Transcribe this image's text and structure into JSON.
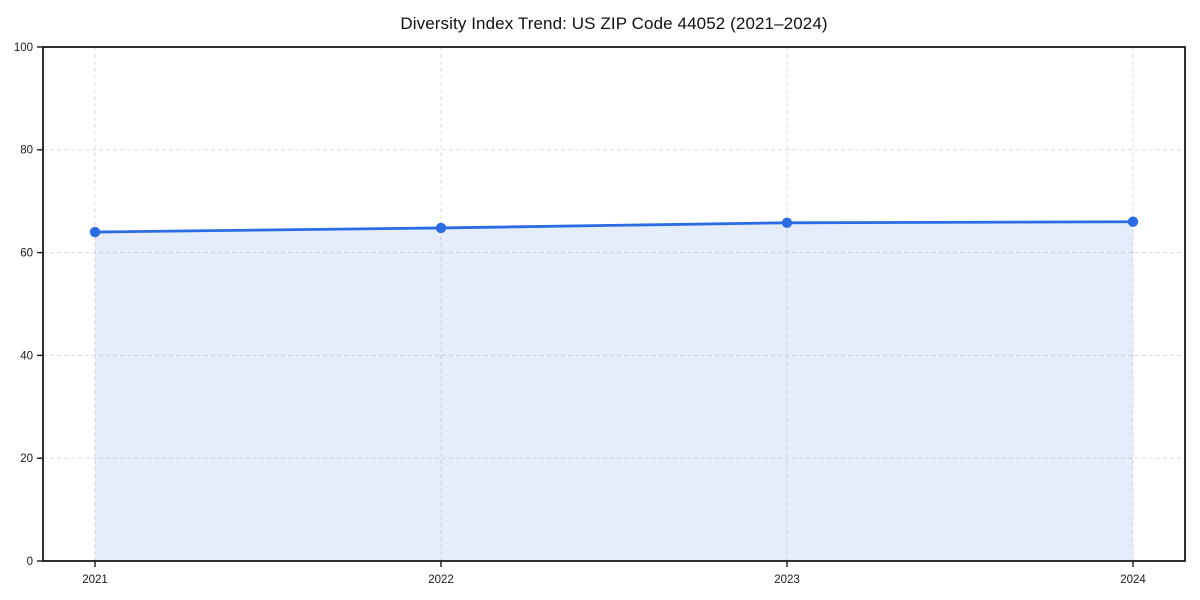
{
  "chart_data": {
    "type": "area",
    "title": "Diversity Index Trend: US ZIP Code 44052 (2021–2024)",
    "x": [
      2021,
      2022,
      2023,
      2024
    ],
    "values": [
      64.0,
      64.8,
      65.8,
      66.0
    ],
    "xlabel": "",
    "ylabel": "",
    "ylim": [
      0,
      100
    ],
    "yticks": [
      0,
      20,
      40,
      60,
      80,
      100
    ],
    "xtick_labels": [
      "2021",
      "2022",
      "2023",
      "2024"
    ],
    "grid": true,
    "legend": "none",
    "line_color": "#2b6ce4",
    "marker_color": "#2b6ce4",
    "fill_color": "#2b6ce4",
    "fill_opacity": 0.12,
    "grid_color": "#dcdcdc",
    "spine_color": "#1a1a1a",
    "background_color": "#ffffff"
  }
}
